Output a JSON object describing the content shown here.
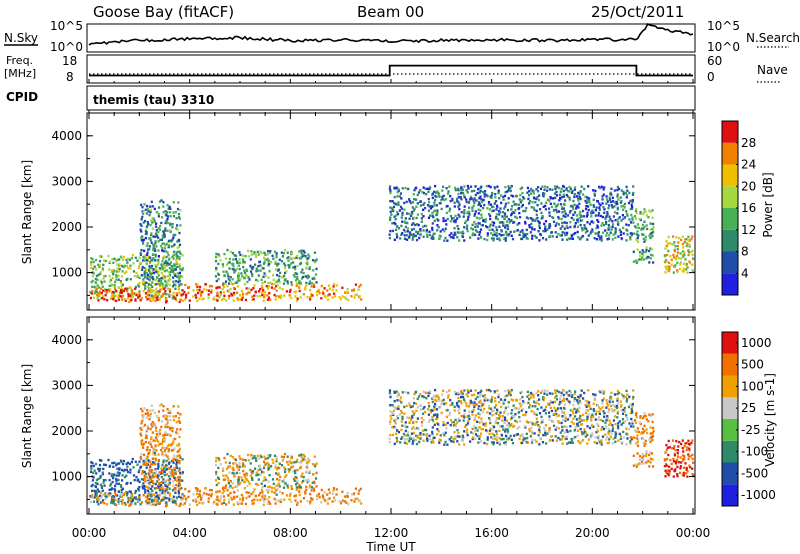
{
  "header": {
    "station": "Goose Bay (fitACF)",
    "beam": "Beam 00",
    "date": "25/Oct/2011"
  },
  "noise_panel": {
    "left_label": "N.Sky",
    "right_label": "N.Search",
    "left_ticks": [
      "10^5",
      "10^0"
    ],
    "right_ticks": [
      "10^5",
      "10^0"
    ]
  },
  "freq_panel": {
    "left_label_line1": "Freq.",
    "left_label_line2": "[MHz]",
    "right_label": "Nave",
    "left_ticks": [
      "18",
      "8"
    ],
    "right_ticks": [
      "60",
      "0"
    ]
  },
  "cpid": {
    "label": "CPID",
    "value": "themis (tau) 3310"
  },
  "time_axis": {
    "xlabel": "Time UT",
    "ticks": [
      "00:00",
      "04:00",
      "08:00",
      "12:00",
      "16:00",
      "20:00",
      "00:00"
    ]
  },
  "power_panel": {
    "ylabel": "Slant Range [km]",
    "yticks": [
      "4000",
      "3000",
      "2000",
      "1000"
    ],
    "colorbar_label": "Power [dB]",
    "colorbar_ticks": [
      "28",
      "24",
      "20",
      "16",
      "12",
      "8",
      "4"
    ],
    "colors": [
      "#1f1fe0",
      "#1e4ea8",
      "#2f8a6a",
      "#48b055",
      "#a8d840",
      "#f0c000",
      "#f08000",
      "#e01010"
    ]
  },
  "velocity_panel": {
    "ylabel": "Slant Range [km]",
    "yticks": [
      "4000",
      "3000",
      "2000",
      "1000"
    ],
    "colorbar_label": "Velocity [m s-1]",
    "colorbar_ticks": [
      "1000",
      "500",
      "100",
      "25",
      "-25",
      "-100",
      "-500",
      "-1000"
    ],
    "colors": [
      "#1f1fe0",
      "#1e4ea8",
      "#2f8a6a",
      "#58c040",
      "#c8c8c8",
      "#f0a000",
      "#f07000",
      "#e01010"
    ]
  },
  "chart_data": [
    {
      "type": "line",
      "title": "Goose Bay (fitACF)",
      "panel": "noise",
      "series": [
        {
          "name": "N.Sky",
          "x_hours": [
            0,
            2,
            4,
            6,
            8,
            10,
            12,
            14,
            16,
            18,
            20,
            21.8,
            22.2,
            23,
            24
          ],
          "values": [
            2,
            3,
            3.5,
            3.8,
            3,
            3.2,
            2.8,
            3,
            3.2,
            3,
            3.2,
            3.3,
            8,
            6,
            5
          ]
        }
      ],
      "ylim": [
        "10^0",
        "10^5"
      ]
    },
    {
      "type": "line",
      "panel": "frequency",
      "series": [
        {
          "name": "Freq. [MHz]",
          "x_hours": [
            0,
            11.95,
            11.95,
            21.75,
            21.75,
            24
          ],
          "values": [
            10.3,
            10.3,
            14.4,
            14.4,
            10.3,
            10.3
          ]
        },
        {
          "name": "Nave",
          "x_hours": [
            0,
            24
          ],
          "values": [
            8,
            8
          ]
        }
      ],
      "ylim": [
        8,
        18
      ]
    },
    {
      "type": "heatmap",
      "panel": "power",
      "x": "Time UT (hours 0-24)",
      "y": "Slant Range [km]",
      "ylim": [
        180,
        4500
      ],
      "zlabel": "Power [dB]",
      "zlim": [
        0,
        32
      ],
      "scatter_regions": [
        {
          "t_start": 0.0,
          "t_end": 3.7,
          "r_min": 400,
          "r_max": 1400,
          "power_db": 16,
          "velocity_ms": 150
        },
        {
          "t_start": 0.0,
          "t_end": 3.7,
          "r_min": 350,
          "r_max": 650,
          "power_db": 28,
          "velocity_ms": -25
        },
        {
          "t_start": 2.0,
          "t_end": 3.6,
          "r_min": 700,
          "r_max": 2600,
          "power_db": 10,
          "velocity_ms": -100
        },
        {
          "t_start": 3.7,
          "t_end": 10.8,
          "r_min": 380,
          "r_max": 750,
          "power_db": 26,
          "velocity_ms": -100
        },
        {
          "t_start": 5.0,
          "t_end": 9.0,
          "r_min": 750,
          "r_max": 1500,
          "power_db": 12,
          "velocity_ms": -25
        },
        {
          "t_start": 11.9,
          "t_end": 21.6,
          "r_min": 1700,
          "r_max": 2900,
          "power_db": 8,
          "velocity_ms": 25
        },
        {
          "t_start": 21.6,
          "t_end": 22.4,
          "r_min": 1200,
          "r_max": 2400,
          "power_db": 12,
          "velocity_ms": -100
        },
        {
          "t_start": 22.8,
          "t_end": 24.0,
          "r_min": 1000,
          "r_max": 1800,
          "power_db": 20,
          "velocity_ms": -500
        }
      ]
    }
  ]
}
